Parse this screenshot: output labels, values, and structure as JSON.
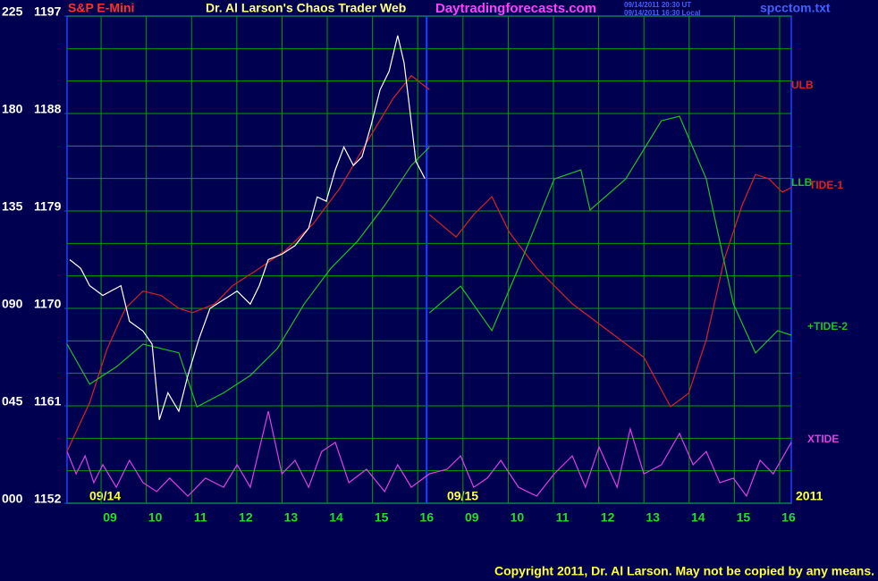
{
  "header": {
    "symbol": "S&P E-Mini",
    "site": "Daytradingforecasts.com",
    "timestamp_ut": "09/14/2011 20:30 UT",
    "timestamp_local": "09/14/2011 16:30 Local",
    "file": "spcctom.txt"
  },
  "footer": {
    "copyright": "Copyright 2011, Dr. Al Larson. May not be copied by any means."
  },
  "chart_data": {
    "type": "line",
    "title": "Dr. Al Larson's Chaos Trader Web",
    "annotations": [
      "09/14",
      "09/15",
      "2011"
    ],
    "xlim": [
      0.05,
      16.06
    ],
    "xticks": [
      {
        "value": 1,
        "label": "09"
      },
      {
        "value": 2,
        "label": "10"
      },
      {
        "value": 3,
        "label": "11"
      },
      {
        "value": 4,
        "label": "12"
      },
      {
        "value": 5,
        "label": "13"
      },
      {
        "value": 6,
        "label": "14"
      },
      {
        "value": 7,
        "label": "15"
      },
      {
        "value": 8,
        "label": "16"
      },
      {
        "value": 9,
        "label": "09"
      },
      {
        "value": 10,
        "label": "10"
      },
      {
        "value": 11,
        "label": "11"
      },
      {
        "value": 12,
        "label": "12"
      },
      {
        "value": 13,
        "label": "13"
      },
      {
        "value": 14,
        "label": "14"
      },
      {
        "value": 15,
        "label": "15"
      },
      {
        "value": 16,
        "label": "16"
      }
    ],
    "ylim": [
      1152,
      1197
    ],
    "yticks": [
      1152,
      1161,
      1170,
      1179,
      1188,
      1197
    ],
    "y_minor_gridlines": [
      1155,
      1158,
      1164,
      1167,
      1173,
      1176,
      1182,
      1185,
      1191,
      1194
    ],
    "y2lim": [
      0,
      225
    ],
    "y2ticks": [
      {
        "value": 0,
        "label": "000"
      },
      {
        "value": 45,
        "label": "045"
      },
      {
        "value": 90,
        "label": "090"
      },
      135,
      180,
      225
    ],
    "grid": true,
    "price": {
      "color": "#ffffff",
      "x": [
        0.11,
        0.35,
        0.55,
        0.84,
        1.24,
        1.43,
        1.73,
        1.93,
        2.09,
        2.28,
        2.52,
        2.72,
        2.96,
        3.21,
        3.51,
        3.81,
        4.1,
        4.3,
        4.5,
        4.8,
        5.09,
        5.39,
        5.58,
        5.78,
        5.98,
        6.17,
        6.38,
        6.57,
        6.77,
        6.97,
        7.17,
        7.36,
        7.5,
        7.62,
        7.76,
        7.96
      ],
      "values": [
        1174.5,
        1173.7,
        1172.1,
        1171.2,
        1172.1,
        1168.8,
        1167.9,
        1166.7,
        1159.7,
        1162.2,
        1160.5,
        1163.8,
        1167.1,
        1170.0,
        1170.8,
        1171.6,
        1170.4,
        1172.1,
        1174.5,
        1175.0,
        1175.8,
        1177.4,
        1180.3,
        1179.9,
        1182.8,
        1184.9,
        1183.2,
        1184.0,
        1186.9,
        1190.2,
        1191.9,
        1195.2,
        1192.7,
        1188.6,
        1183.6,
        1182.0
      ]
    },
    "series": [
      {
        "name": "ULB",
        "color": "#e02020",
        "x": [
          0.05,
          0.55,
          0.94,
          1.34,
          1.73,
          2.13,
          2.52,
          2.82,
          3.31,
          3.71,
          4.3,
          4.89,
          5.49,
          6.08,
          6.67,
          7.26,
          7.66,
          8.06
        ],
        "values": [
          1156.8,
          1161.3,
          1166.3,
          1170.0,
          1171.6,
          1171.2,
          1170.0,
          1169.6,
          1170.4,
          1172.1,
          1173.7,
          1175.4,
          1177.8,
          1181.1,
          1185.3,
          1189.4,
          1191.5,
          1190.2
        ]
      },
      {
        "name": "LLB",
        "color": "#20c020",
        "x": [
          0.05,
          0.55,
          1.14,
          1.73,
          2.52,
          2.92,
          3.51,
          4.1,
          4.7,
          5.29,
          5.88,
          6.47,
          7.07,
          7.66,
          8.06
        ],
        "values": [
          1166.7,
          1163.0,
          1164.6,
          1166.7,
          1165.9,
          1160.9,
          1162.2,
          1163.8,
          1166.3,
          1170.4,
          1173.7,
          1176.2,
          1179.5,
          1183.2,
          1184.9
        ]
      },
      {
        "name": "TIDE-1",
        "color": "#e02020",
        "axis": "y2",
        "x": [
          8.06,
          8.65,
          9.04,
          9.44,
          9.83,
          10.43,
          11.22,
          12.01,
          12.8,
          13.39,
          13.79,
          14.18,
          14.58,
          14.97,
          15.27,
          15.57,
          15.86,
          16.06
        ],
        "values": [
          133.3,
          123.0,
          133.3,
          141.6,
          125.1,
          108.6,
          92.1,
          79.7,
          67.4,
          44.6,
          50.8,
          75.5,
          112.7,
          137.5,
          151.9,
          149.8,
          143.7,
          145.8
        ]
      },
      {
        "name": "+TIDE-2",
        "color": "#20c020",
        "axis": "y2",
        "x": [
          8.06,
          8.75,
          9.44,
          10.03,
          10.82,
          11.41,
          11.61,
          12.4,
          13.19,
          13.59,
          14.18,
          14.78,
          15.27,
          15.76,
          16.06
        ],
        "values": [
          87.9,
          100.3,
          79.7,
          108.6,
          149.8,
          154.0,
          135.4,
          149.8,
          176.7,
          178.7,
          149.8,
          92.1,
          69.4,
          79.7,
          77.6
        ]
      },
      {
        "name": "XTIDE",
        "color": "#e040e0",
        "axis": "y2",
        "x": [
          0.05,
          0.25,
          0.45,
          0.64,
          0.84,
          1.14,
          1.43,
          1.73,
          2.03,
          2.32,
          2.72,
          3.11,
          3.51,
          3.81,
          4.1,
          4.5,
          4.8,
          5.09,
          5.39,
          5.68,
          5.98,
          6.28,
          6.67,
          7.07,
          7.36,
          7.66,
          8.06,
          8.45,
          8.75,
          9.04,
          9.34,
          9.64,
          10.03,
          10.43,
          10.82,
          11.22,
          11.51,
          11.81,
          12.21,
          12.5,
          12.8,
          13.19,
          13.59,
          13.89,
          14.18,
          14.48,
          14.78,
          15.07,
          15.37,
          15.66,
          16.06
        ],
        "values": [
          23.9,
          13.6,
          21.9,
          9.5,
          17.8,
          7.4,
          19.8,
          9.5,
          5.4,
          11.6,
          3.3,
          11.6,
          7.4,
          17.8,
          7.4,
          42.5,
          13.6,
          19.8,
          7.4,
          23.9,
          28.1,
          9.5,
          15.7,
          5.4,
          17.8,
          7.4,
          13.6,
          15.7,
          21.9,
          7.4,
          11.6,
          19.8,
          7.4,
          3.3,
          13.6,
          21.9,
          7.4,
          26.0,
          7.4,
          34.3,
          13.6,
          17.8,
          32.2,
          17.8,
          23.9,
          9.5,
          11.6,
          3.3,
          19.8,
          13.6,
          28.1
        ]
      }
    ]
  }
}
